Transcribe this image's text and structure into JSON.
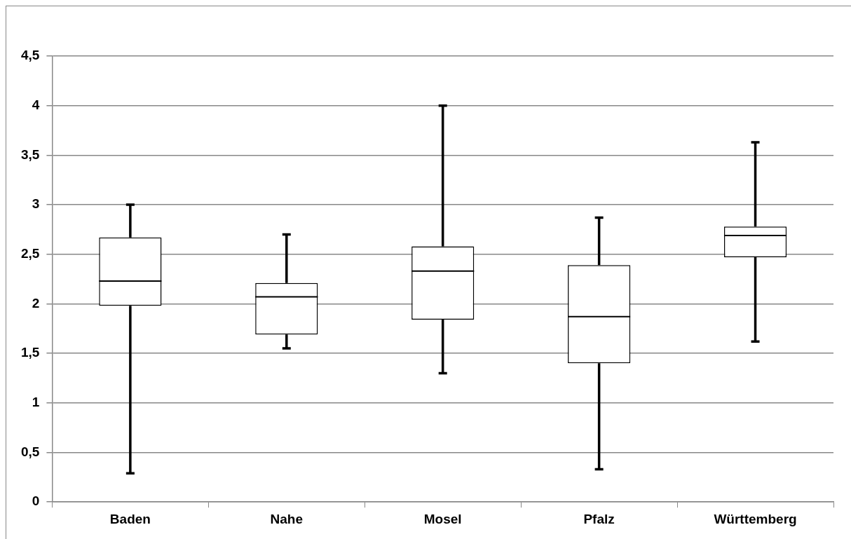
{
  "chart_data": {
    "type": "box",
    "categories": [
      "Baden",
      "Nahe",
      "Mosel",
      "Pfalz",
      "Württemberg"
    ],
    "boxes": [
      {
        "low": 0.29,
        "q1": 1.98,
        "median": 2.23,
        "q3": 2.67,
        "high": 3.0
      },
      {
        "low": 1.55,
        "q1": 1.69,
        "median": 2.07,
        "q3": 2.21,
        "high": 2.7
      },
      {
        "low": 1.3,
        "q1": 1.84,
        "median": 2.33,
        "q3": 2.58,
        "high": 4.0
      },
      {
        "low": 0.33,
        "q1": 1.4,
        "median": 1.87,
        "q3": 2.39,
        "high": 2.87
      },
      {
        "low": 1.62,
        "q1": 2.47,
        "median": 2.69,
        "q3": 2.78,
        "high": 3.63
      }
    ],
    "color": "#000000",
    "ylim": [
      0,
      4.5
    ],
    "yticks": [
      {
        "value": 0,
        "label": "0"
      },
      {
        "value": 0.5,
        "label": "0,5"
      },
      {
        "value": 1,
        "label": "1"
      },
      {
        "value": 1.5,
        "label": "1,5"
      },
      {
        "value": 2,
        "label": "2"
      },
      {
        "value": 2.5,
        "label": "2,5"
      },
      {
        "value": 3,
        "label": "3"
      },
      {
        "value": 3.5,
        "label": "3,5"
      },
      {
        "value": 4,
        "label": "4"
      },
      {
        "value": 4.5,
        "label": "4,5"
      }
    ],
    "grid": "y",
    "legend": false
  }
}
